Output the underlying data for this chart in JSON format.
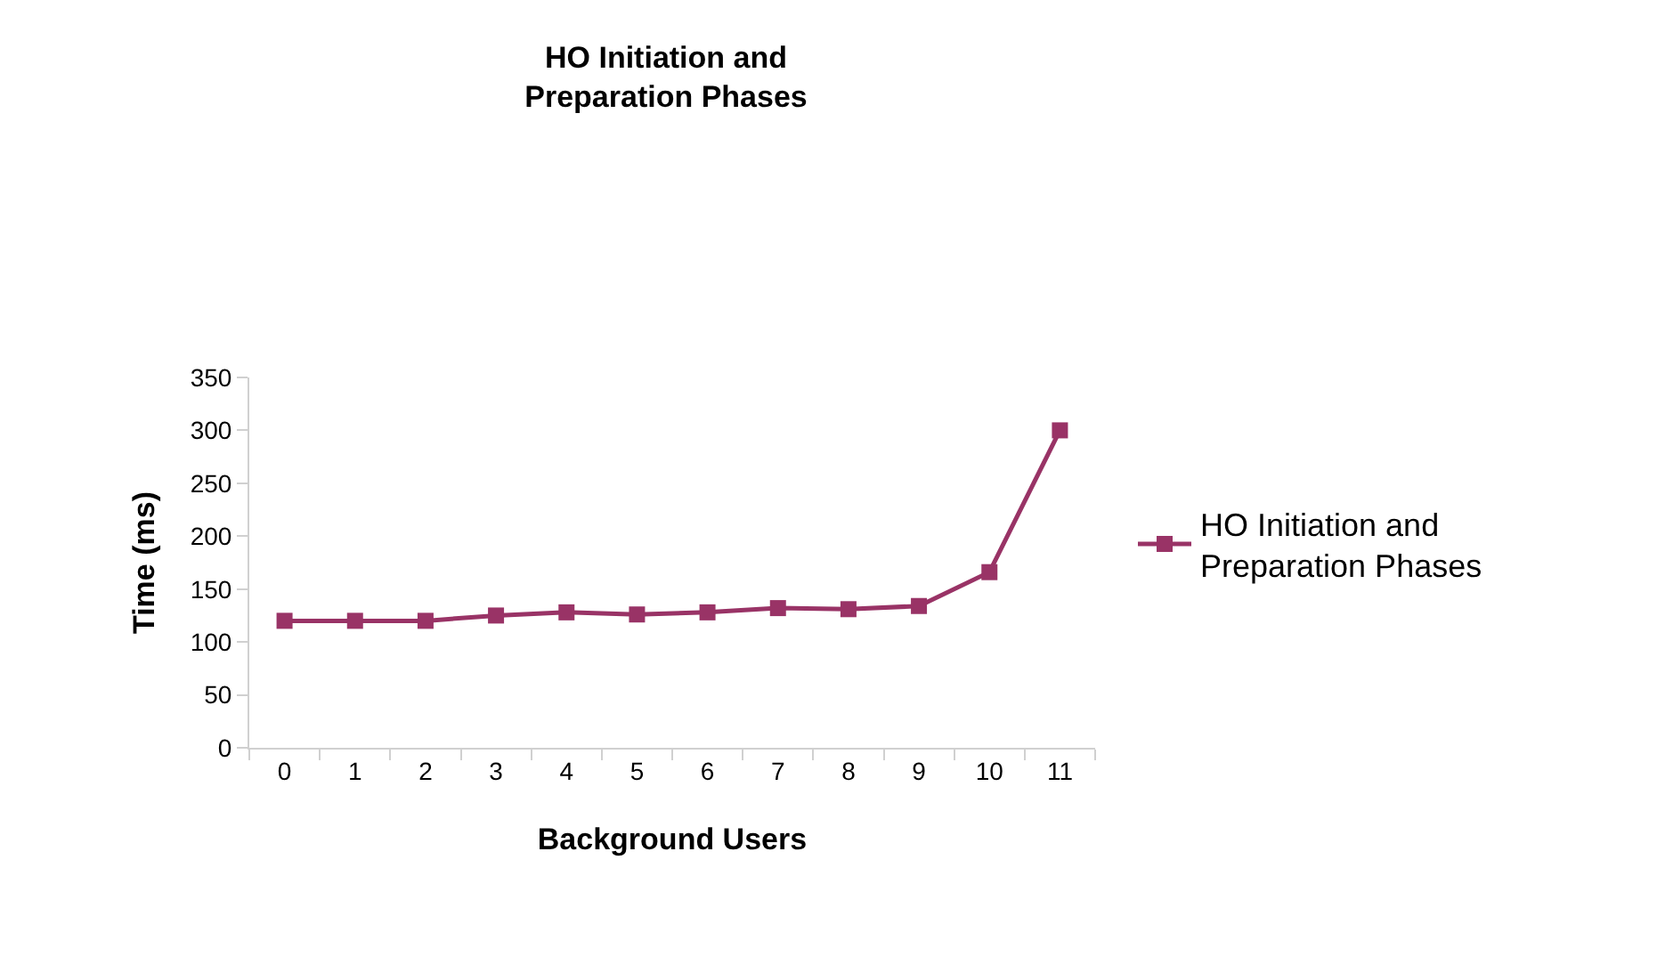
{
  "chart_data": {
    "type": "line",
    "title": "HO Initiation and\nPreparation Phases",
    "xlabel": "Background Users",
    "ylabel": "Time (ms)",
    "categories": [
      "0",
      "1",
      "2",
      "3",
      "4",
      "5",
      "6",
      "7",
      "8",
      "9",
      "10",
      "11"
    ],
    "series": [
      {
        "name": "HO Initiation and\nPreparation Phases",
        "color": "#993366",
        "values": [
          120,
          120,
          120,
          125,
          128,
          126,
          128,
          132,
          131,
          134,
          166,
          300
        ]
      }
    ],
    "ylim": [
      0,
      350
    ],
    "yticks": [
      0,
      50,
      100,
      150,
      200,
      250,
      300,
      350
    ],
    "legend": "right",
    "marker": "square",
    "line_style": "solid"
  }
}
